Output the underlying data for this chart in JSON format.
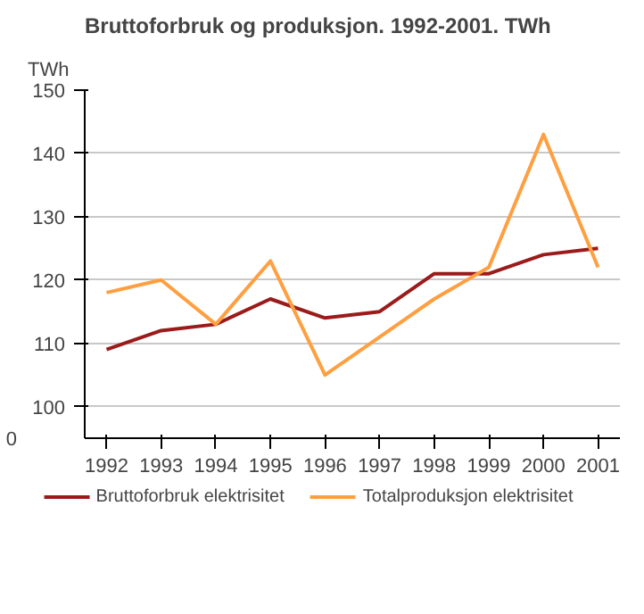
{
  "chart_data": {
    "type": "line",
    "title": "Bruttoforbruk og produksjon. 1992-2001. TWh",
    "ylabel": "TWh",
    "categories": [
      "1992",
      "1993",
      "1994",
      "1995",
      "1996",
      "1997",
      "1998",
      "1999",
      "2000",
      "2001"
    ],
    "series": [
      {
        "name": "Bruttoforbruk elektrisitet",
        "color": "#9b1b1b",
        "values": [
          109,
          112,
          113,
          117,
          114,
          115,
          121,
          121,
          124,
          125
        ]
      },
      {
        "name": "Totalproduksjon elektrisitet",
        "color": "#ff9f40",
        "values": [
          118,
          120,
          113,
          123,
          105,
          111,
          117,
          122,
          143,
          122
        ]
      }
    ],
    "ylim": [
      95,
      150
    ],
    "yticks": [
      100,
      110,
      120,
      130,
      140,
      150
    ],
    "annotations": [
      "0"
    ],
    "grid": "y",
    "legend": "bottom",
    "marker": "none",
    "line_style": "solid"
  }
}
